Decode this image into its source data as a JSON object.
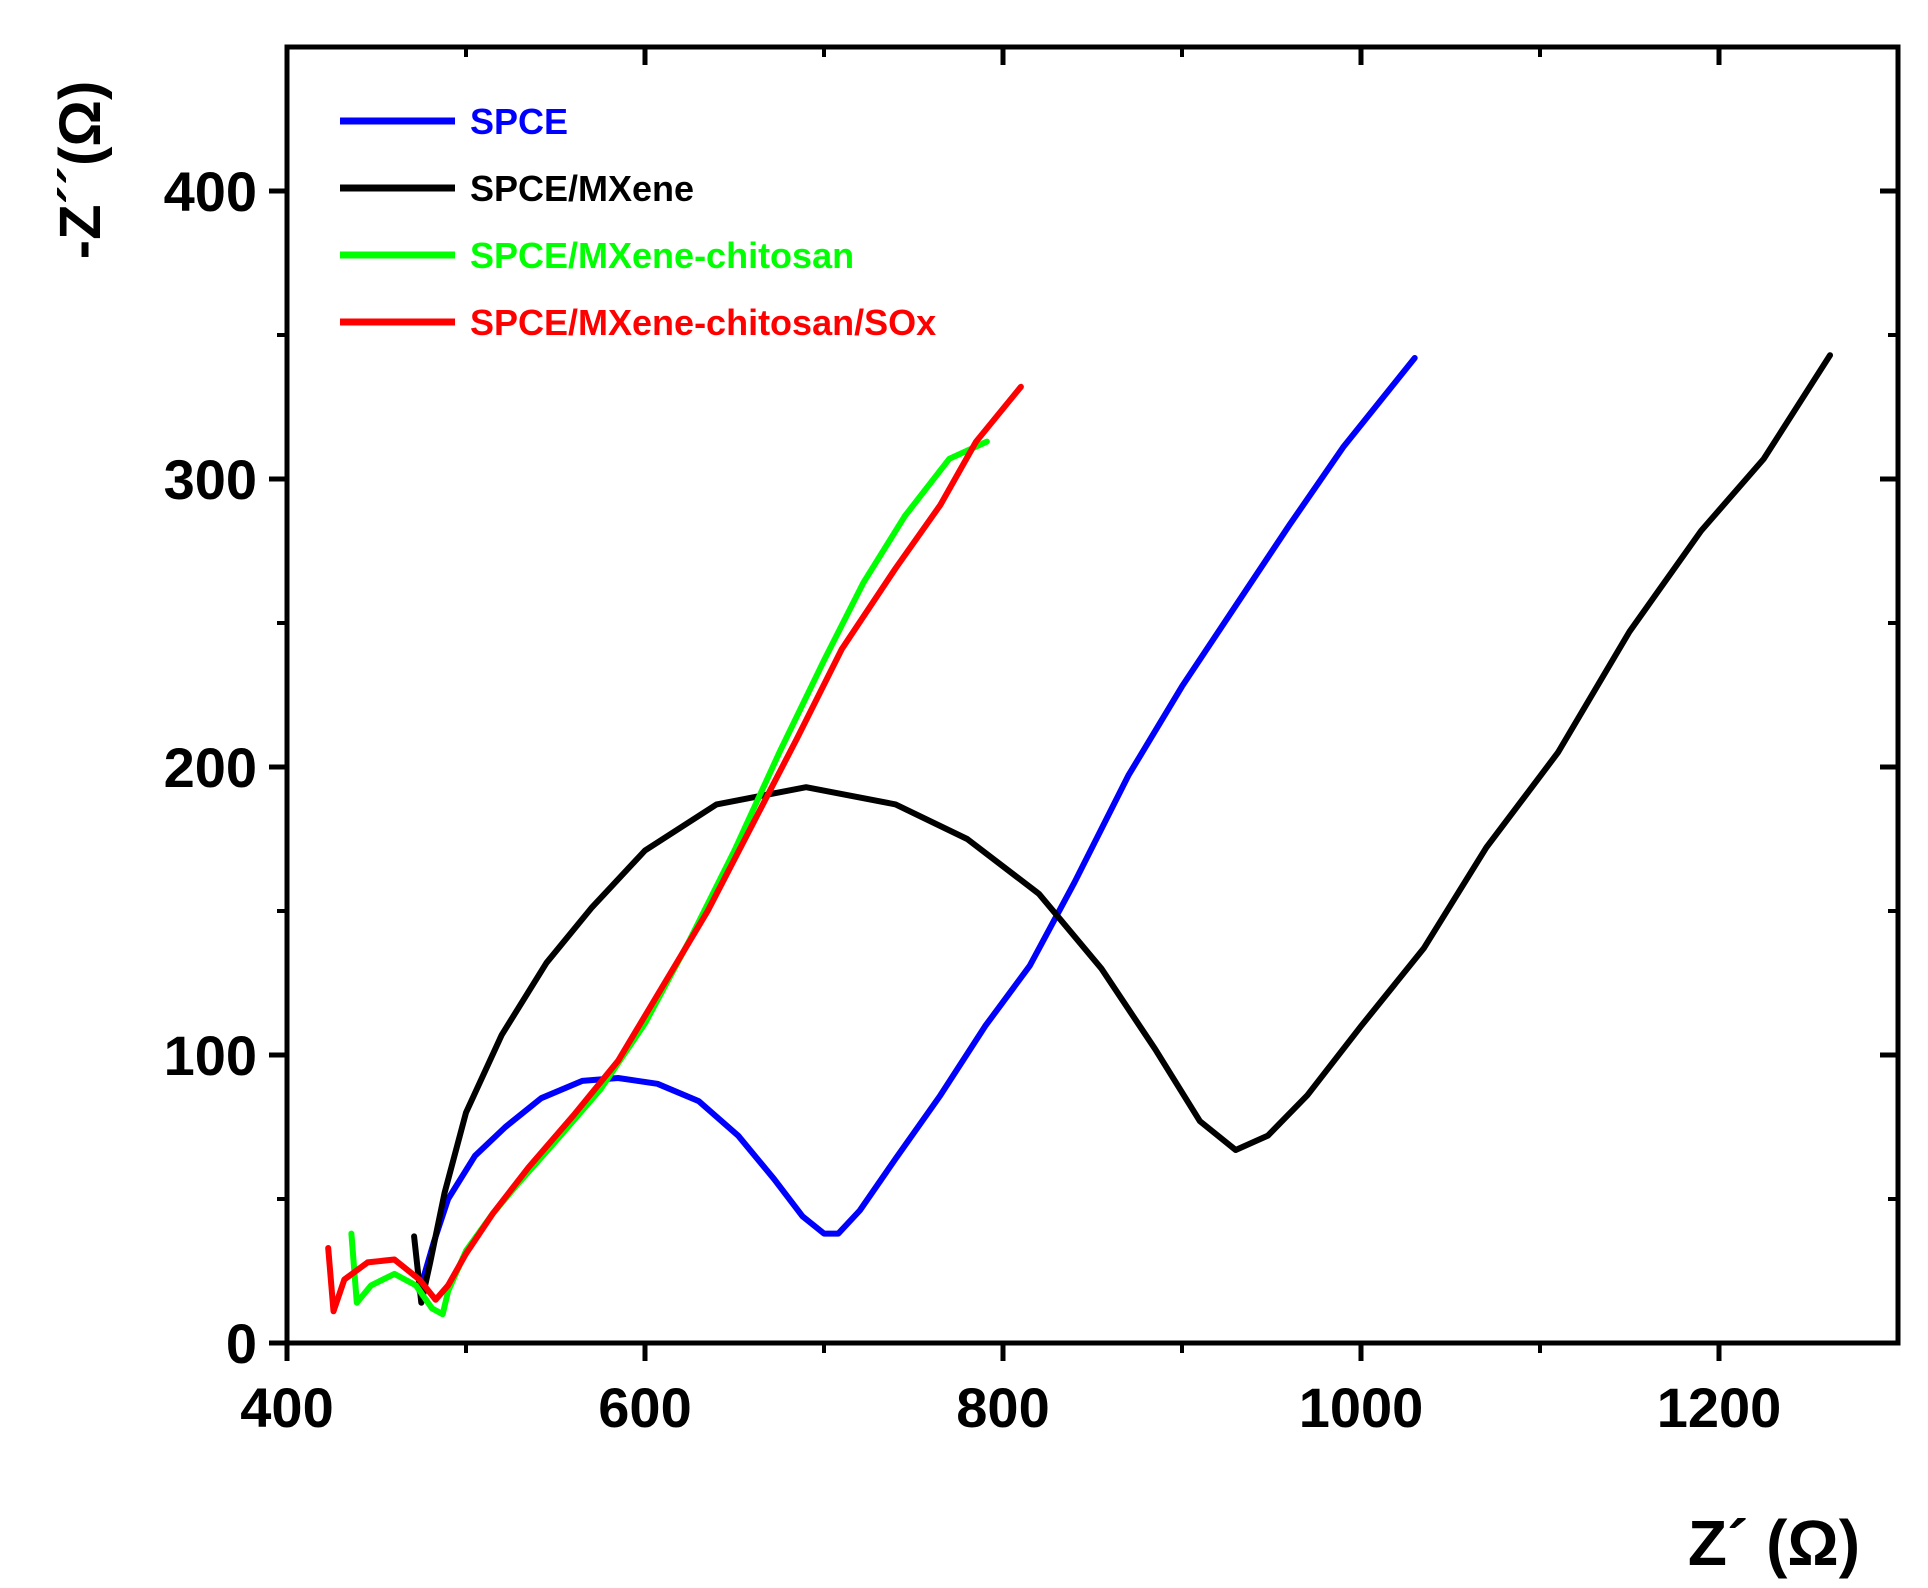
{
  "chart_data": {
    "type": "line",
    "title": "",
    "xlabel": "Z´ (Ω)",
    "ylabel": "-Z´´(Ω)",
    "xlim": [
      400,
      1300
    ],
    "ylim": [
      0,
      450
    ],
    "xticks": [
      400,
      600,
      800,
      1000,
      1200
    ],
    "yticks": [
      0,
      100,
      200,
      300,
      400
    ],
    "x_tick_labels": [
      "400",
      "600",
      "800",
      "1000",
      "1200"
    ],
    "y_tick_labels": [
      "0",
      "100",
      "200",
      "300",
      "400"
    ],
    "grid": false,
    "legend_position": "top-left",
    "series": [
      {
        "name": "SPCE",
        "color": "#0000ff",
        "points": [
          [
            474,
            18
          ],
          [
            482,
            35
          ],
          [
            490,
            50
          ],
          [
            505,
            65
          ],
          [
            522,
            75
          ],
          [
            542,
            85
          ],
          [
            565,
            91
          ],
          [
            585,
            92
          ],
          [
            607,
            90
          ],
          [
            630,
            84
          ],
          [
            652,
            72
          ],
          [
            672,
            57
          ],
          [
            688,
            44
          ],
          [
            700,
            38
          ],
          [
            708,
            38
          ],
          [
            720,
            46
          ],
          [
            740,
            64
          ],
          [
            765,
            86
          ],
          [
            790,
            110
          ],
          [
            815,
            131
          ],
          [
            840,
            160
          ],
          [
            870,
            197
          ],
          [
            900,
            228
          ],
          [
            930,
            256
          ],
          [
            960,
            284
          ],
          [
            990,
            311
          ],
          [
            1030,
            342
          ]
        ]
      },
      {
        "name": "SPCE/MXene",
        "color": "#000000",
        "points": [
          [
            471,
            37
          ],
          [
            475,
            14
          ],
          [
            480,
            28
          ],
          [
            488,
            52
          ],
          [
            500,
            80
          ],
          [
            520,
            107
          ],
          [
            545,
            132
          ],
          [
            570,
            151
          ],
          [
            600,
            171
          ],
          [
            640,
            187
          ],
          [
            690,
            193
          ],
          [
            740,
            187
          ],
          [
            780,
            175
          ],
          [
            820,
            156
          ],
          [
            855,
            130
          ],
          [
            885,
            102
          ],
          [
            910,
            77
          ],
          [
            930,
            67
          ],
          [
            948,
            72
          ],
          [
            970,
            86
          ],
          [
            1000,
            110
          ],
          [
            1035,
            137
          ],
          [
            1070,
            172
          ],
          [
            1110,
            205
          ],
          [
            1150,
            247
          ],
          [
            1190,
            282
          ],
          [
            1225,
            307
          ],
          [
            1262,
            343
          ]
        ]
      },
      {
        "name": "SPCE/MXene-chitosan",
        "color": "#00ff00",
        "points": [
          [
            436,
            38
          ],
          [
            439,
            14
          ],
          [
            447,
            20
          ],
          [
            460,
            24
          ],
          [
            472,
            20
          ],
          [
            481,
            12
          ],
          [
            487,
            10
          ],
          [
            490,
            18
          ],
          [
            500,
            32
          ],
          [
            515,
            45
          ],
          [
            530,
            56
          ],
          [
            550,
            70
          ],
          [
            575,
            88
          ],
          [
            600,
            111
          ],
          [
            625,
            140
          ],
          [
            650,
            171
          ],
          [
            675,
            205
          ],
          [
            700,
            237
          ],
          [
            722,
            264
          ],
          [
            745,
            287
          ],
          [
            770,
            307
          ],
          [
            791,
            313
          ]
        ]
      },
      {
        "name": "SPCE/MXene-chitosan/SOx",
        "color": "#ff0000",
        "points": [
          [
            423,
            33
          ],
          [
            426,
            11
          ],
          [
            432,
            22
          ],
          [
            445,
            28
          ],
          [
            460,
            29
          ],
          [
            474,
            22
          ],
          [
            483,
            15
          ],
          [
            490,
            20
          ],
          [
            500,
            31
          ],
          [
            515,
            45
          ],
          [
            535,
            61
          ],
          [
            560,
            79
          ],
          [
            585,
            98
          ],
          [
            610,
            124
          ],
          [
            635,
            150
          ],
          [
            660,
            180
          ],
          [
            685,
            210
          ],
          [
            710,
            241
          ],
          [
            740,
            269
          ],
          [
            765,
            291
          ],
          [
            785,
            313
          ],
          [
            810,
            332
          ]
        ]
      }
    ]
  }
}
